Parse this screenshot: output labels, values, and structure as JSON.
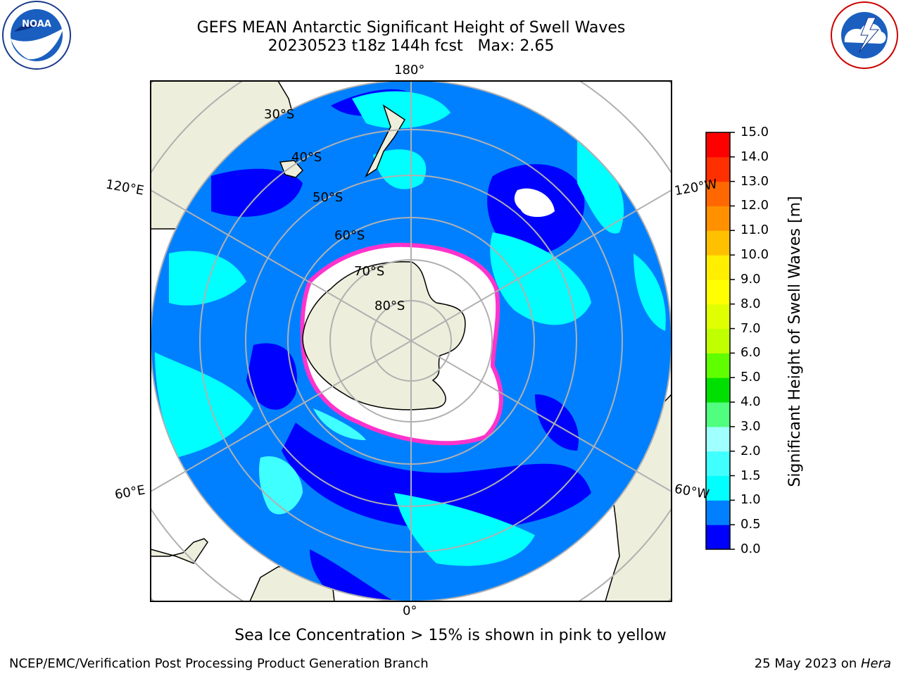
{
  "title": "GEFS MEAN Antarctic Significant Height of Swell Waves",
  "subtitle": "20230523 t18z 144h fcst   Max: 2.65",
  "map": {
    "projection": "south polar stereographic",
    "longitude_labels": [
      "180°",
      "120°E",
      "120°W",
      "60°E",
      "60°W",
      "0°"
    ],
    "latitude_labels": [
      "30°S",
      "40°S",
      "50°S",
      "60°S",
      "70°S",
      "80°S"
    ]
  },
  "colorbar": {
    "label": "Significant Height of Swell Waves [m]",
    "ticks": [
      "15.0",
      "14.0",
      "13.0",
      "12.0",
      "11.0",
      "10.0",
      "9.0",
      "8.0",
      "7.0",
      "6.0",
      "5.0",
      "4.0",
      "3.0",
      "2.0",
      "1.5",
      "1.0",
      "0.5",
      "0.0"
    ],
    "bins": [
      {
        "from": 0.0,
        "to": 0.5,
        "color": "#0000ff"
      },
      {
        "from": 0.5,
        "to": 1.0,
        "color": "#0080ff"
      },
      {
        "from": 1.0,
        "to": 1.5,
        "color": "#00ffff"
      },
      {
        "from": 1.5,
        "to": 2.0,
        "color": "#40ffff"
      },
      {
        "from": 2.0,
        "to": 3.0,
        "color": "#a0ffff"
      },
      {
        "from": 3.0,
        "to": 4.0,
        "color": "#50ff80"
      },
      {
        "from": 4.0,
        "to": 5.0,
        "color": "#00e000"
      },
      {
        "from": 5.0,
        "to": 6.0,
        "color": "#60ff00"
      },
      {
        "from": 6.0,
        "to": 7.0,
        "color": "#c0ff00"
      },
      {
        "from": 7.0,
        "to": 8.0,
        "color": "#e0ff00"
      },
      {
        "from": 8.0,
        "to": 9.0,
        "color": "#ffff00"
      },
      {
        "from": 9.0,
        "to": 10.0,
        "color": "#ffee00"
      },
      {
        "from": 10.0,
        "to": 11.0,
        "color": "#ffc000"
      },
      {
        "from": 11.0,
        "to": 12.0,
        "color": "#ff9000"
      },
      {
        "from": 12.0,
        "to": 13.0,
        "color": "#ff6800"
      },
      {
        "from": 13.0,
        "to": 14.0,
        "color": "#ff3000"
      },
      {
        "from": 14.0,
        "to": 15.0,
        "color": "#ff0000"
      }
    ]
  },
  "note": "Sea Ice Concentration > 15% is shown in pink to yellow",
  "footer_left": "NCEP/EMC/Verification Post Processing Product Generation Branch",
  "footer_right_prefix": "25 May 2023 on ",
  "footer_right_machine": "Hera",
  "logos": {
    "left": "NOAA",
    "right": "NATIONAL WEATHER SERVICE"
  },
  "colors": {
    "land": "#eeeedc",
    "ocean_low": "#0000ff",
    "ocean_mid": "#0080ff",
    "ocean_high": "#00ffff",
    "ice_edge": "#ff33cc",
    "grid": "#b0b0b0"
  }
}
